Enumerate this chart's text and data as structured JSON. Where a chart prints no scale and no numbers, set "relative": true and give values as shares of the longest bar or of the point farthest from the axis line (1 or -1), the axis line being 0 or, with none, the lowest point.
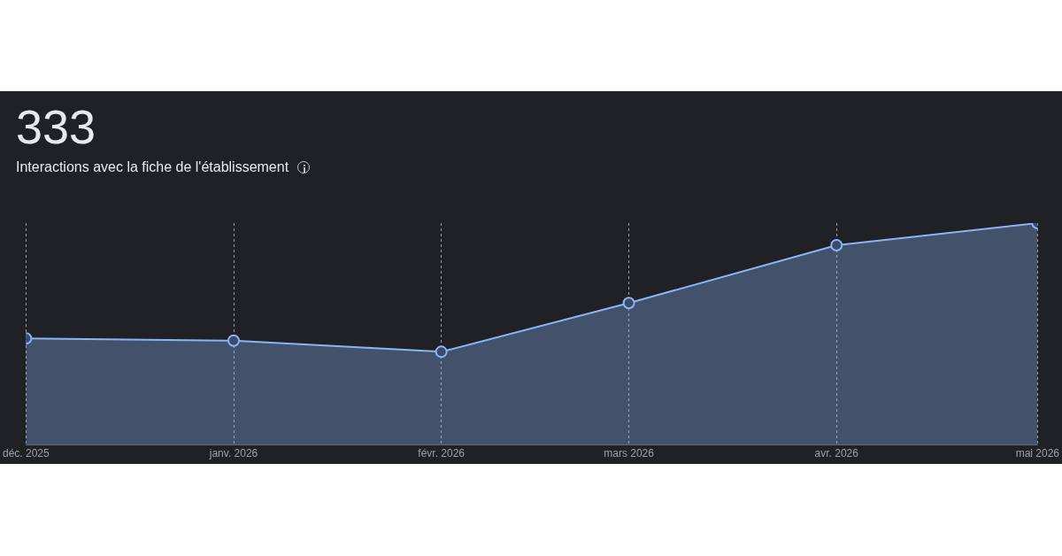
{
  "chart_data": {
    "type": "area",
    "title": "333",
    "subtitle": "Interactions avec la fiche de l'établissement",
    "x": [
      "2025-12",
      "2026-01",
      "2026-02",
      "2026-03",
      "2026-04",
      "2026-05"
    ],
    "relative": true,
    "series": [
      {
        "color": "#8ab4f8",
        "values": [
          0.48,
          0.47,
          0.42,
          0.64,
          0.9,
          1
        ]
      }
    ],
    "xlim": [
      "2025-12",
      "2026-05"
    ],
    "xticks": [
      {
        "value": "2025-12",
        "label": "déc. 2025"
      },
      {
        "value": "2026-01",
        "label": "janv. 2026"
      },
      {
        "value": "2026-02",
        "label": "févr. 2026"
      },
      {
        "value": "2026-03",
        "label": "mars 2026"
      },
      {
        "value": "2026-04",
        "label": "avr. 2026"
      },
      {
        "value": "2026-05",
        "label": "mai 2026"
      }
    ],
    "grid": "x",
    "legend": false,
    "marker": "circle",
    "line_style": "solid"
  }
}
